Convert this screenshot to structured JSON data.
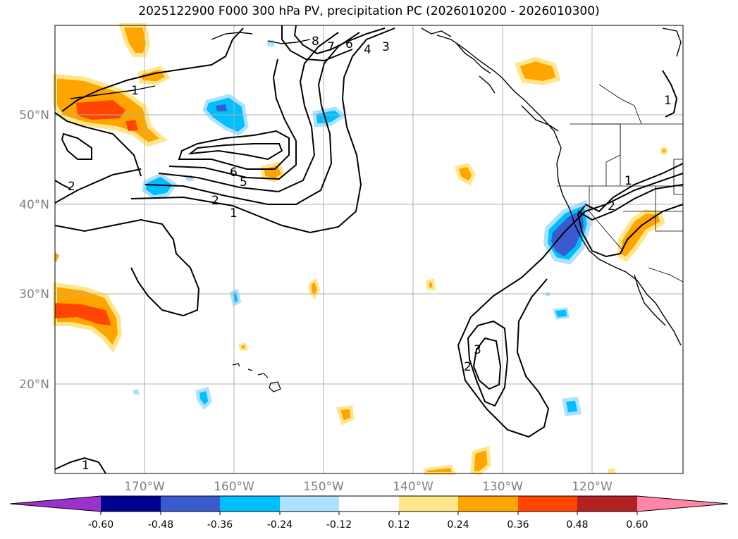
{
  "title": "2025122900 F000 300 hPa PV, precipitation PC (2026010200 - 2026010300)",
  "map": {
    "lat_labels": [
      "50°N",
      "40°N",
      "30°N",
      "20°N"
    ],
    "lon_labels": [
      "170°W",
      "160°W",
      "150°W",
      "140°W",
      "130°W",
      "120°W"
    ],
    "contour_labels": [
      "8",
      "7",
      "6",
      "4",
      "3",
      "1",
      "6",
      "5",
      "2",
      "1",
      "2",
      "1",
      "2",
      "2",
      "3",
      "1",
      "1"
    ]
  },
  "colorbar": {
    "ticks": [
      "-0.60",
      "-0.48",
      "-0.36",
      "-0.24",
      "-0.12",
      "0.12",
      "0.24",
      "0.36",
      "0.48",
      "0.60"
    ],
    "colors": [
      "#9933cc",
      "#000090",
      "#3a5bd0",
      "#00bfff",
      "#ace2ff",
      "#ffffff",
      "#ffe68a",
      "#ffa500",
      "#ff4500",
      "#b22222",
      "#ff86a6"
    ]
  }
}
